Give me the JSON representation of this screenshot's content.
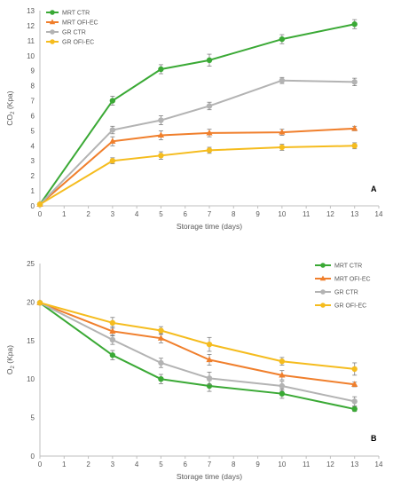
{
  "chart_data": [
    {
      "type": "line",
      "panel_label": "A",
      "xlabel": "Storage time (days)",
      "ylabel": "CO",
      "ylabel_sub": "2",
      "ylabel_unit": " (Kpa)",
      "xlim": [
        0,
        14
      ],
      "ylim": [
        0,
        13
      ],
      "xticks": [
        0,
        1,
        2,
        3,
        4,
        5,
        6,
        7,
        8,
        9,
        10,
        11,
        12,
        13,
        14
      ],
      "yticks": [
        0,
        1,
        2,
        3,
        4,
        5,
        6,
        7,
        8,
        9,
        10,
        11,
        12,
        13
      ],
      "grid": false,
      "legend": "top-left",
      "x": [
        0,
        3,
        5,
        7,
        10,
        13
      ],
      "series": [
        {
          "name": "MRT CTR",
          "color": "#3aa935",
          "marker": "circle",
          "values": [
            0.1,
            7.0,
            9.1,
            9.7,
            11.1,
            12.1
          ],
          "errors": [
            0.1,
            0.3,
            0.3,
            0.4,
            0.3,
            0.3
          ]
        },
        {
          "name": "MRT OFI-EC",
          "color": "#f07f2c",
          "marker": "triangle",
          "values": [
            0.1,
            4.3,
            4.7,
            4.85,
            4.9,
            5.15
          ],
          "errors": [
            0.1,
            0.3,
            0.3,
            0.25,
            0.2,
            0.15
          ]
        },
        {
          "name": "GR CTR",
          "color": "#b3b3b3",
          "marker": "circle",
          "values": [
            0.1,
            5.05,
            5.7,
            6.65,
            8.35,
            8.25
          ],
          "errors": [
            0.1,
            0.25,
            0.3,
            0.25,
            0.2,
            0.25
          ]
        },
        {
          "name": "GR OFI-EC",
          "color": "#f5bc1e",
          "marker": "circle",
          "values": [
            0.1,
            3.0,
            3.35,
            3.7,
            3.9,
            4.0
          ],
          "errors": [
            0.1,
            0.2,
            0.25,
            0.2,
            0.2,
            0.2
          ]
        }
      ]
    },
    {
      "type": "line",
      "panel_label": "B",
      "xlabel": "Storage time (days)",
      "ylabel": "O",
      "ylabel_sub": "2",
      "ylabel_unit": " (Kpa)",
      "xlim": [
        0,
        14
      ],
      "ylim": [
        0,
        25
      ],
      "xticks": [
        0,
        1,
        2,
        3,
        4,
        5,
        6,
        7,
        8,
        9,
        10,
        11,
        12,
        13,
        14
      ],
      "yticks": [
        0,
        5,
        10,
        15,
        20,
        25
      ],
      "grid": false,
      "legend": "right",
      "x": [
        0,
        3,
        5,
        7,
        10,
        13
      ],
      "series": [
        {
          "name": "MRT CTR",
          "color": "#3aa935",
          "marker": "circle",
          "values": [
            19.9,
            13.1,
            10.0,
            9.1,
            8.1,
            6.1
          ],
          "errors": [
            0.2,
            0.6,
            0.6,
            0.7,
            0.6,
            0.3
          ]
        },
        {
          "name": "MRT OFI-EC",
          "color": "#f07f2c",
          "marker": "triangle",
          "values": [
            19.9,
            16.2,
            15.3,
            12.5,
            10.5,
            9.3
          ],
          "errors": [
            0.2,
            0.6,
            0.6,
            0.7,
            0.6,
            0.3
          ]
        },
        {
          "name": "GR CTR",
          "color": "#b3b3b3",
          "marker": "circle",
          "values": [
            19.9,
            15.1,
            12.1,
            10.1,
            9.1,
            7.1
          ],
          "errors": [
            0.2,
            0.6,
            0.6,
            0.8,
            0.6,
            0.6
          ]
        },
        {
          "name": "GR OFI-EC",
          "color": "#f5bc1e",
          "marker": "circle",
          "values": [
            19.9,
            17.3,
            16.3,
            14.5,
            12.3,
            11.3
          ],
          "errors": [
            0.2,
            0.7,
            0.5,
            0.9,
            0.5,
            0.8
          ]
        }
      ]
    }
  ]
}
